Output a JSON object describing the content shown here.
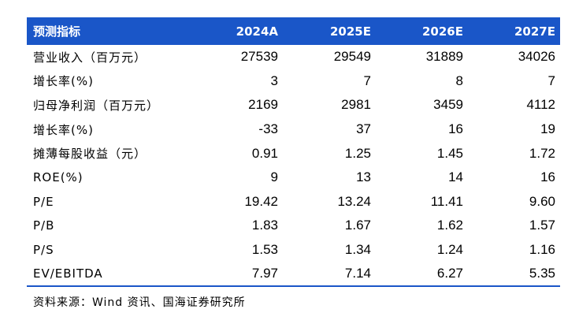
{
  "table": {
    "headers": [
      "预测指标",
      "2024A",
      "2025E",
      "2026E",
      "2027E"
    ],
    "rows": [
      {
        "label": "营业收入（百万元）",
        "values": [
          "27539",
          "29549",
          "31889",
          "34026"
        ]
      },
      {
        "label": "增长率(%)",
        "values": [
          "3",
          "7",
          "8",
          "7"
        ]
      },
      {
        "label": "归母净利润（百万元）",
        "values": [
          "2169",
          "2981",
          "3459",
          "4112"
        ]
      },
      {
        "label": "增长率(%)",
        "values": [
          "-33",
          "37",
          "16",
          "19"
        ]
      },
      {
        "label": "摊薄每股收益（元）",
        "values": [
          "0.91",
          "1.25",
          "1.45",
          "1.72"
        ]
      },
      {
        "label": "ROE(%)",
        "values": [
          "9",
          "13",
          "14",
          "16"
        ]
      },
      {
        "label": "P/E",
        "values": [
          "19.42",
          "13.24",
          "11.41",
          "9.60"
        ]
      },
      {
        "label": "P/B",
        "values": [
          "1.83",
          "1.67",
          "1.62",
          "1.57"
        ]
      },
      {
        "label": "P/S",
        "values": [
          "1.53",
          "1.34",
          "1.24",
          "1.16"
        ]
      },
      {
        "label": "EV/EBITDA",
        "values": [
          "7.97",
          "7.14",
          "6.27",
          "5.35"
        ]
      }
    ]
  },
  "source": "资料来源：Wind 资讯、国海证券研究所",
  "colors": {
    "header_bg": "#1a56c8",
    "header_text": "#ffffff",
    "rule": "#1a56c8"
  }
}
